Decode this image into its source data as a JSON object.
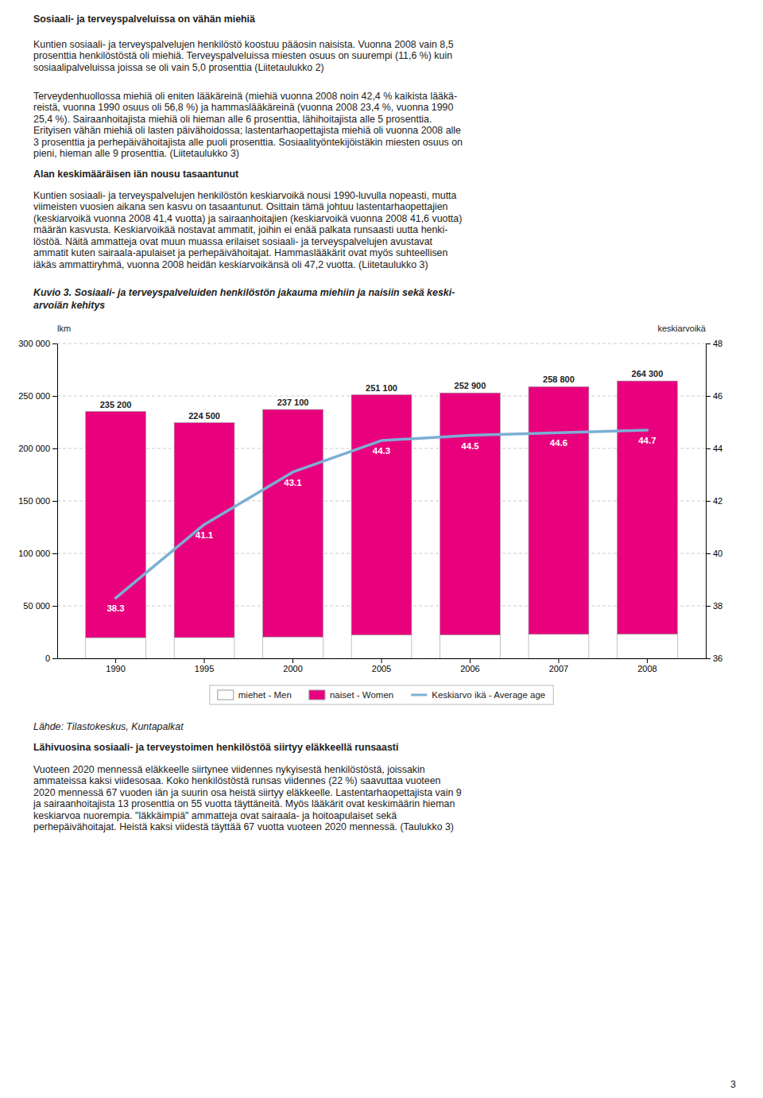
{
  "heading1": "Sosiaali- ja terveyspalveluissa on vähän miehiä",
  "para1": [
    "Kuntien sosiaali- ja terveyspalvelujen henkilöstö koostuu pääosin naisista. Vuonna 2008 vain 8,5",
    "prosenttia henkilöstöstä oli miehiä. Terveyspalveluissa miesten osuus on suurempi (11,6 %) kuin",
    "sosiaalipalveluissa joissa se oli vain 5,0 prosenttia (Liitetaulukko 2)"
  ],
  "para2": [
    "Terveydenhuollossa miehiä oli eniten lääkäreinä (miehiä vuonna 2008 noin 42,4 % kaikista lääkä-",
    "reistä, vuonna 1990 osuus oli 56,8 %) ja hammaslääkäreinä (vuonna 2008 23,4 %, vuonna 1990",
    "25,4 %). Sairaanhoitajista miehiä oli hieman alle 6 prosenttia, lähihoitajista alle 5 prosenttia.",
    "Erityisen vähän miehiä oli lasten päivähoidossa; lastentarhaopettajista miehiä oli vuonna 2008 alle",
    "3 prosenttia ja perhepäivähoitajista alle puoli prosenttia. Sosiaalityöntekijöistäkin miesten osuus on",
    "pieni, hieman alle 9 prosenttia. (Liitetaulukko 3)"
  ],
  "heading2": "Alan keskimääräisen iän nousu tasaantunut",
  "para3": [
    "Kuntien sosiaali- ja terveyspalvelujen henkilöstön keskiarvoikä nousi 1990-luvulla nopeasti, mutta",
    "viimeisten vuosien aikana sen kasvu on tasaantunut. Osittain tämä johtuu lastentarhaopettajien",
    "(keskiarvoikä vuonna 2008 41,4 vuotta) ja sairaanhoitajien (keskiarvoikä vuonna 2008 41,6 vuotta)",
    "määrän kasvusta. Keskiarvoikää nostavat ammatit, joihin ei enää palkata runsaasti uutta henki-",
    "löstöä. Näitä ammatteja ovat muun muassa erilaiset sosiaali- ja terveyspalvelujen avustavat",
    "ammatit kuten sairaala-apulaiset ja  perhepäivähoitajat. Hammaslääkärit ovat myös suhteellisen",
    "iäkäs ammattiryhmä, vuonna 2008 heidän keskiarvoikänsä oli 47,2 vuotta. (Liitetaulukko 3)"
  ],
  "source": "Lähde: Tilastokeskus, Kuntapalkat",
  "heading3": "Lähivuosina sosiaali- ja terveystoimen henkilöstöä siirtyy eläkkeellä runsaasti",
  "para4": [
    "Vuoteen 2020 mennessä eläkkeelle siirtynee viidennes nykyisestä henkilöstöstä, joissakin",
    "ammateissa kaksi viidesosaa. Koko henkilöstöstä runsas viidennes (22 %) saavuttaa vuoteen",
    "2020 mennessä 67 vuoden iän ja suurin osa heistä siirtyy eläkkeelle. Lastentarhaopettajista vain 9",
    "ja sairaanhoitajista 13 prosenttia on 55 vuotta täyttäneitä. Myös lääkärit ovat keskimäärin hieman",
    "keskiarvoa nuorempia. \"läkkäimpiä\" ammatteja ovat sairaala- ja hoitoapulaiset sekä",
    "perhepäivähoitajat. Heistä kaksi viidestä täyttää 67 vuotta vuoteen 2020 mennessä. (Taulukko 3)"
  ],
  "page_number": "3",
  "chart_data": {
    "type": "bar",
    "title": [
      "Kuvio 3. Sosiaali- ja terveyspalveluiden henkilöstön jakauma miehiin ja naisiin sekä keski-",
      "arvoiän kehitys"
    ],
    "y_label": "lkm",
    "y2_label": "keskiarvoikä",
    "categories": [
      1990,
      1995,
      2000,
      2005,
      2006,
      2007,
      2008
    ],
    "stacked": true,
    "grid": true,
    "legend": "bottom",
    "series": [
      {
        "name": "miehet - Men",
        "color": "#FFFFFF",
        "values": [
          19700,
          19800,
          20400,
          22200,
          22400,
          22900,
          23200
        ]
      },
      {
        "name": "naiset - Women",
        "color": "#E8007D",
        "values": [
          215500,
          204700,
          216700,
          228900,
          230500,
          235900,
          241100
        ]
      },
      {
        "name": "Keskiarvo ikä - Average age",
        "type": "line",
        "axis": "y2",
        "color": "#7BAFD4",
        "data_labels": true,
        "values": [
          38.3,
          41.1,
          43.1,
          44.3,
          44.5,
          44.6,
          44.7
        ]
      }
    ],
    "totals": [
      235200,
      224500,
      237100,
      251100,
      252900,
      258800,
      264300
    ],
    "total_labels": [
      "235 200",
      "224 500",
      "237 100",
      "251 100",
      "252 900",
      "258 800",
      "264 300"
    ],
    "ylim": [
      0,
      300000
    ],
    "yticks": [
      0,
      {
        "value": 50000,
        "label": "50 000"
      },
      {
        "value": 100000,
        "label": "100 000"
      },
      {
        "value": 150000,
        "label": "150 000"
      },
      {
        "value": 200000,
        "label": "200 000"
      },
      {
        "value": 250000,
        "label": "250 000"
      },
      {
        "value": 300000,
        "label": "300 000"
      }
    ],
    "y2lim": [
      36,
      48
    ],
    "y2ticks": [
      36,
      38,
      40,
      42,
      44,
      46,
      48
    ]
  }
}
